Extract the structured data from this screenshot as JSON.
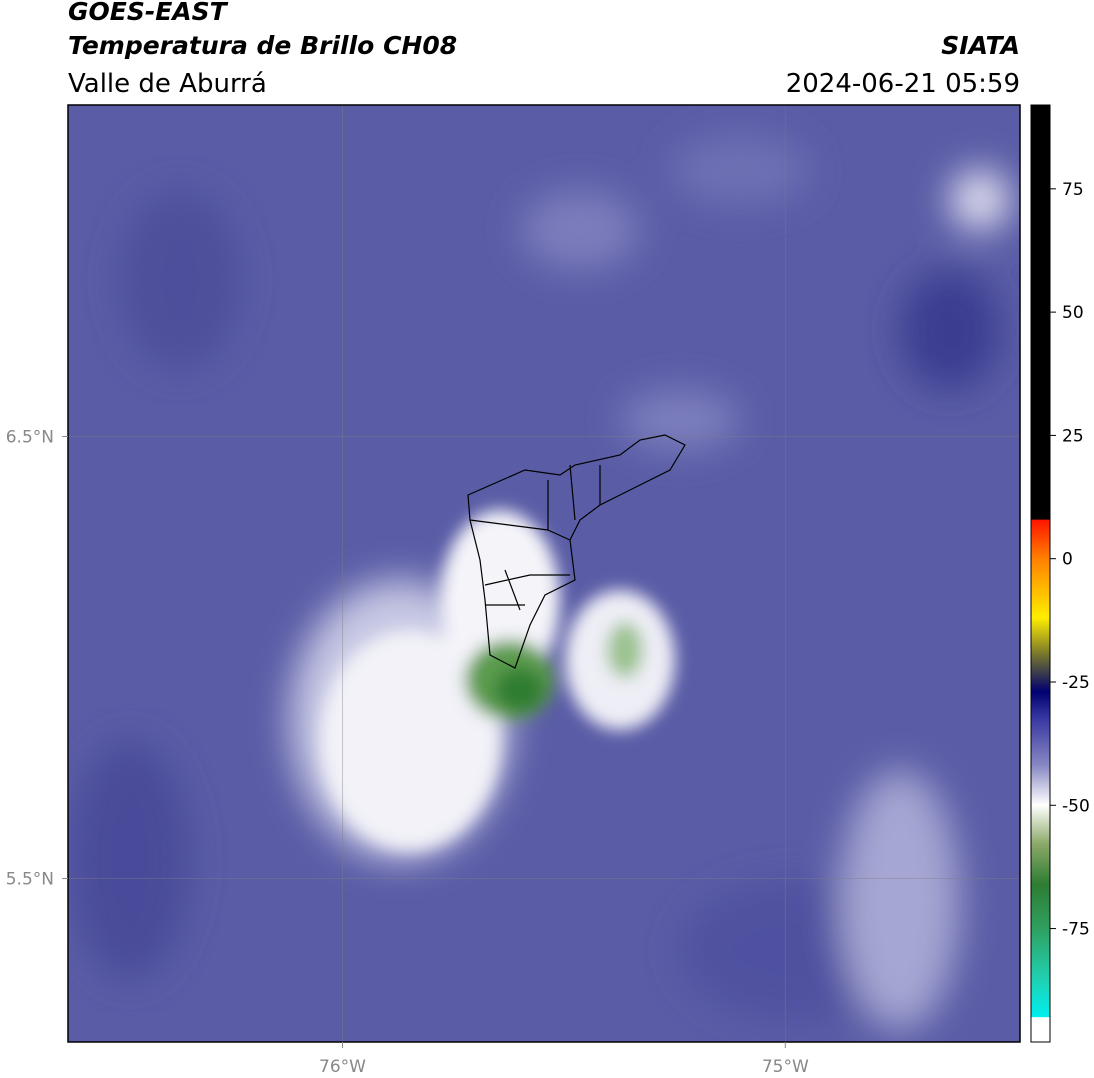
{
  "header": {
    "title": "GOES-EAST",
    "subtitle": "Temperatura de Brillo CH08",
    "region": "Valle de Aburrá",
    "source": "SIATA",
    "datetime": "2024-06-21 05:59"
  },
  "map": {
    "xlim": [
      -76.62,
      -74.47
    ],
    "ylim": [
      5.13,
      7.25
    ],
    "xticks": [
      {
        "value": -76,
        "label": "76°W"
      },
      {
        "value": -75,
        "label": "75°W"
      }
    ],
    "yticks": [
      {
        "value": 6.5,
        "label": "6.5°N"
      },
      {
        "value": 5.5,
        "label": "5.5°N"
      }
    ]
  },
  "colorbar": {
    "lim": [
      -98,
      92
    ],
    "ticks": [
      75,
      50,
      25,
      0,
      -25,
      -50,
      -75
    ]
  }
}
